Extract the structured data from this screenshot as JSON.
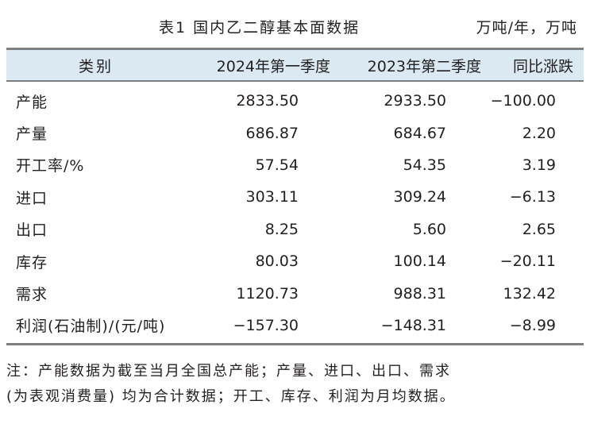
{
  "caption": {
    "title": "表1  国内乙二醇基本面数据",
    "unit": "万吨/年，万吨"
  },
  "table": {
    "headers": [
      "类别",
      "2024年第一季度",
      "2023年第二季度",
      "同比涨跌"
    ],
    "rows": [
      [
        "产能",
        "2833.50",
        "2933.50",
        "−100.00"
      ],
      [
        "产量",
        "686.87",
        "684.67",
        "2.20"
      ],
      [
        "开工率/%",
        "57.54",
        "54.35",
        "3.19"
      ],
      [
        "进口",
        "303.11",
        "309.24",
        "−6.13"
      ],
      [
        "出口",
        "8.25",
        "5.60",
        "2.65"
      ],
      [
        "库存",
        "80.03",
        "100.14",
        "−20.11"
      ],
      [
        "需求",
        "1120.73",
        "988.31",
        "132.42"
      ],
      [
        "利润(石油制)/(元/吨)",
        "−157.30",
        "−148.31",
        "−8.99"
      ]
    ]
  },
  "note": {
    "line1": "注：产能数据为截至当月全国总产能；产量、进口、出口、需求",
    "line2": "(为表观消费量) 均为合计数据；开工、库存、利润为月均数据。"
  }
}
